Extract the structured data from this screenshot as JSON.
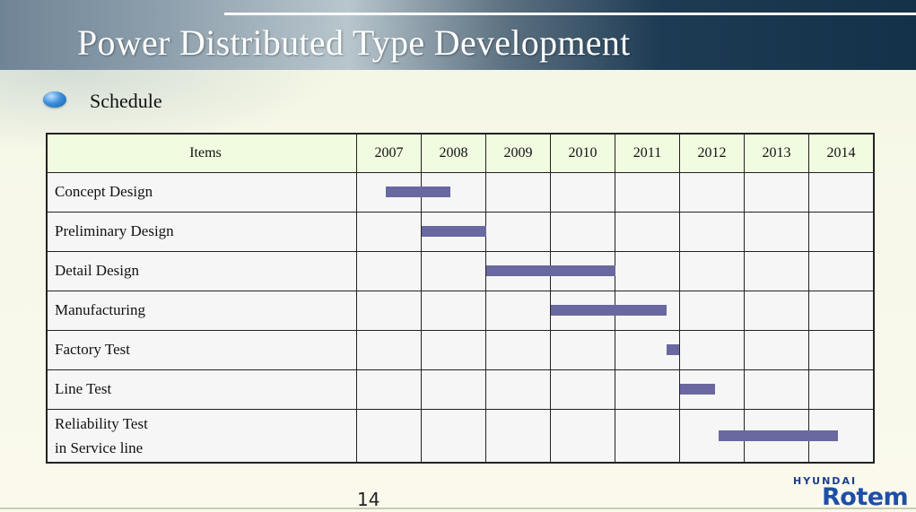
{
  "header": {
    "title": "Power Distributed Type Development"
  },
  "section": {
    "title": "Schedule"
  },
  "table": {
    "items_header": "Items",
    "years": [
      "2007",
      "2008",
      "2009",
      "2010",
      "2011",
      "2012",
      "2013",
      "2014"
    ],
    "rows": [
      {
        "lines": [
          "Concept Design"
        ],
        "start": 2007.45,
        "end": 2008.45
      },
      {
        "lines": [
          "Preliminary Design"
        ],
        "start": 2008.0,
        "end": 2009.0
      },
      {
        "lines": [
          "Detail Design"
        ],
        "start": 2009.0,
        "end": 2011.0
      },
      {
        "lines": [
          "Manufacturing"
        ],
        "start": 2010.0,
        "end": 2011.8
      },
      {
        "lines": [
          "Factory Test"
        ],
        "start": 2011.8,
        "end": 2012.0
      },
      {
        "lines": [
          "Line Test"
        ],
        "start": 2012.0,
        "end": 2012.55
      },
      {
        "lines": [
          "Reliability Test",
          "in Service line"
        ],
        "start": 2012.6,
        "end": 2014.45
      }
    ],
    "bar_color": "#6a68a0"
  },
  "footer": {
    "page_number": "14",
    "logo_top": "HYUNDAI",
    "logo_main": "Rotem"
  }
}
